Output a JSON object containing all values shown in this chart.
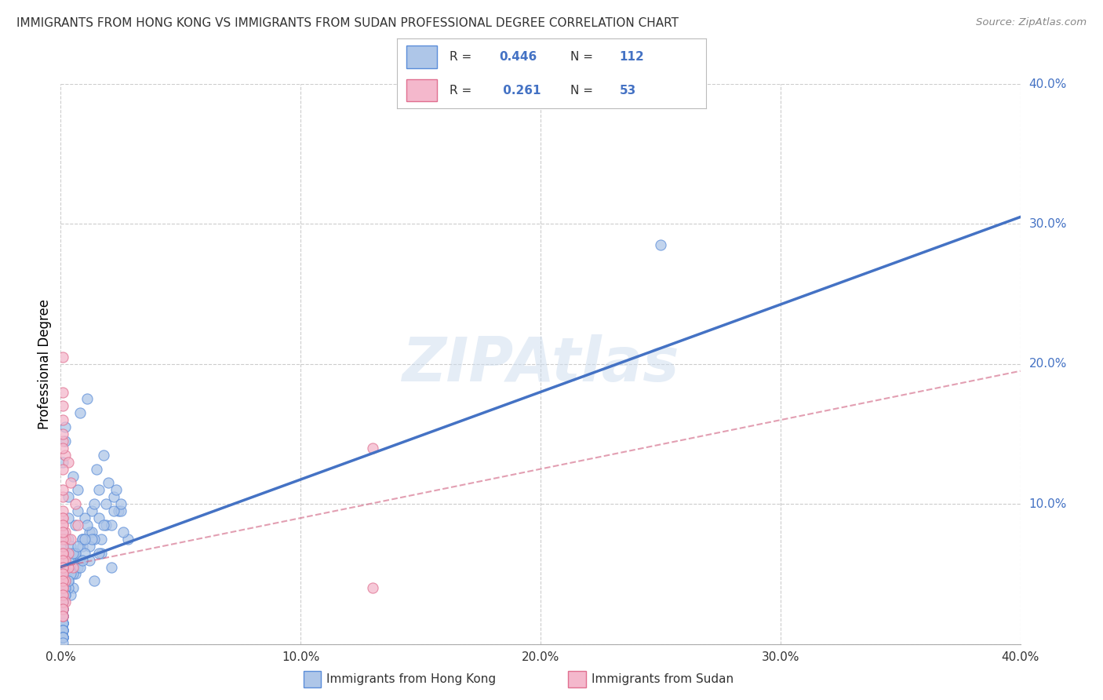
{
  "title": "IMMIGRANTS FROM HONG KONG VS IMMIGRANTS FROM SUDAN PROFESSIONAL DEGREE CORRELATION CHART",
  "source": "Source: ZipAtlas.com",
  "ylabel": "Professional Degree",
  "xlim": [
    0.0,
    0.4
  ],
  "ylim": [
    0.0,
    0.4
  ],
  "xtick_vals": [
    0.0,
    0.1,
    0.2,
    0.3,
    0.4
  ],
  "ytick_vals": [
    0.0,
    0.1,
    0.2,
    0.3,
    0.4
  ],
  "hk_color": "#aec6e8",
  "hk_edge_color": "#5b8dd9",
  "hk_line_color": "#4472c4",
  "sudan_color": "#f4b8cc",
  "sudan_edge_color": "#e07090",
  "sudan_line_color": "#d06080",
  "hk_R": 0.446,
  "hk_N": 112,
  "sudan_R": 0.261,
  "sudan_N": 53,
  "watermark": "ZIPAtlas",
  "legend_blue": "#4472c4",
  "hk_trend_y_start": 0.055,
  "hk_trend_y_end": 0.305,
  "sudan_trend_y_start": 0.055,
  "sudan_trend_y_end": 0.195,
  "hk_scatter_x": [
    0.006,
    0.004,
    0.009,
    0.013,
    0.016,
    0.019,
    0.001,
    0.002,
    0.003,
    0.003,
    0.005,
    0.007,
    0.01,
    0.012,
    0.014,
    0.017,
    0.021,
    0.024,
    0.028,
    0.002,
    0.008,
    0.011,
    0.015,
    0.018,
    0.02,
    0.022,
    0.025,
    0.001,
    0.004,
    0.006,
    0.009,
    0.013,
    0.016,
    0.019,
    0.023,
    0.026,
    0.003,
    0.007,
    0.011,
    0.014,
    0.018,
    0.022,
    0.025,
    0.002,
    0.005,
    0.008,
    0.012,
    0.001,
    0.003,
    0.006,
    0.009,
    0.013,
    0.017,
    0.021,
    0.002,
    0.004,
    0.007,
    0.01,
    0.014,
    0.001,
    0.003,
    0.005,
    0.008,
    0.012,
    0.016,
    0.001,
    0.002,
    0.004,
    0.006,
    0.009,
    0.001,
    0.002,
    0.003,
    0.005,
    0.007,
    0.01,
    0.001,
    0.002,
    0.004,
    0.001,
    0.002,
    0.003,
    0.001,
    0.002,
    0.001,
    0.001,
    0.002,
    0.001,
    0.001,
    0.001,
    0.001,
    0.001,
    0.001,
    0.001,
    0.001,
    0.001,
    0.001,
    0.001,
    0.001,
    0.001,
    0.001,
    0.001,
    0.001,
    0.001,
    0.001,
    0.001,
    0.001,
    0.001,
    0.001,
    0.001,
    0.001,
    0.25
  ],
  "hk_scatter_y": [
    0.085,
    0.065,
    0.075,
    0.095,
    0.11,
    0.085,
    0.13,
    0.145,
    0.105,
    0.075,
    0.12,
    0.11,
    0.09,
    0.08,
    0.1,
    0.075,
    0.085,
    0.095,
    0.075,
    0.155,
    0.165,
    0.175,
    0.125,
    0.135,
    0.115,
    0.105,
    0.095,
    0.07,
    0.06,
    0.05,
    0.07,
    0.08,
    0.09,
    0.1,
    0.11,
    0.08,
    0.09,
    0.095,
    0.085,
    0.075,
    0.085,
    0.095,
    0.1,
    0.05,
    0.04,
    0.06,
    0.07,
    0.055,
    0.045,
    0.065,
    0.075,
    0.075,
    0.065,
    0.055,
    0.04,
    0.035,
    0.055,
    0.065,
    0.045,
    0.03,
    0.04,
    0.05,
    0.055,
    0.06,
    0.065,
    0.08,
    0.075,
    0.07,
    0.065,
    0.06,
    0.055,
    0.055,
    0.06,
    0.065,
    0.07,
    0.075,
    0.04,
    0.045,
    0.05,
    0.035,
    0.04,
    0.045,
    0.03,
    0.035,
    0.025,
    0.03,
    0.035,
    0.02,
    0.025,
    0.015,
    0.02,
    0.025,
    0.015,
    0.02,
    0.01,
    0.015,
    0.02,
    0.01,
    0.015,
    0.005,
    0.01,
    0.015,
    0.005,
    0.01,
    0.005,
    0.005,
    0.01,
    0.005,
    0.005,
    0.005,
    0.001,
    0.285
  ],
  "sudan_scatter_x": [
    0.002,
    0.003,
    0.005,
    0.007,
    0.001,
    0.002,
    0.004,
    0.006,
    0.001,
    0.003,
    0.001,
    0.002,
    0.004,
    0.001,
    0.002,
    0.003,
    0.001,
    0.002,
    0.001,
    0.001,
    0.002,
    0.001,
    0.001,
    0.001,
    0.001,
    0.001,
    0.001,
    0.001,
    0.001,
    0.001,
    0.001,
    0.001,
    0.001,
    0.001,
    0.001,
    0.001,
    0.001,
    0.001,
    0.001,
    0.001,
    0.001,
    0.001,
    0.001,
    0.001,
    0.001,
    0.001,
    0.001,
    0.001,
    0.001,
    0.001,
    0.001,
    0.13,
    0.13
  ],
  "sudan_scatter_y": [
    0.075,
    0.065,
    0.055,
    0.085,
    0.145,
    0.135,
    0.115,
    0.1,
    0.205,
    0.13,
    0.09,
    0.08,
    0.075,
    0.065,
    0.06,
    0.055,
    0.05,
    0.045,
    0.04,
    0.035,
    0.03,
    0.025,
    0.02,
    0.105,
    0.095,
    0.085,
    0.075,
    0.065,
    0.055,
    0.045,
    0.18,
    0.17,
    0.16,
    0.15,
    0.14,
    0.125,
    0.11,
    0.09,
    0.085,
    0.08,
    0.07,
    0.065,
    0.06,
    0.055,
    0.05,
    0.045,
    0.04,
    0.035,
    0.03,
    0.025,
    0.02,
    0.04,
    0.14
  ]
}
